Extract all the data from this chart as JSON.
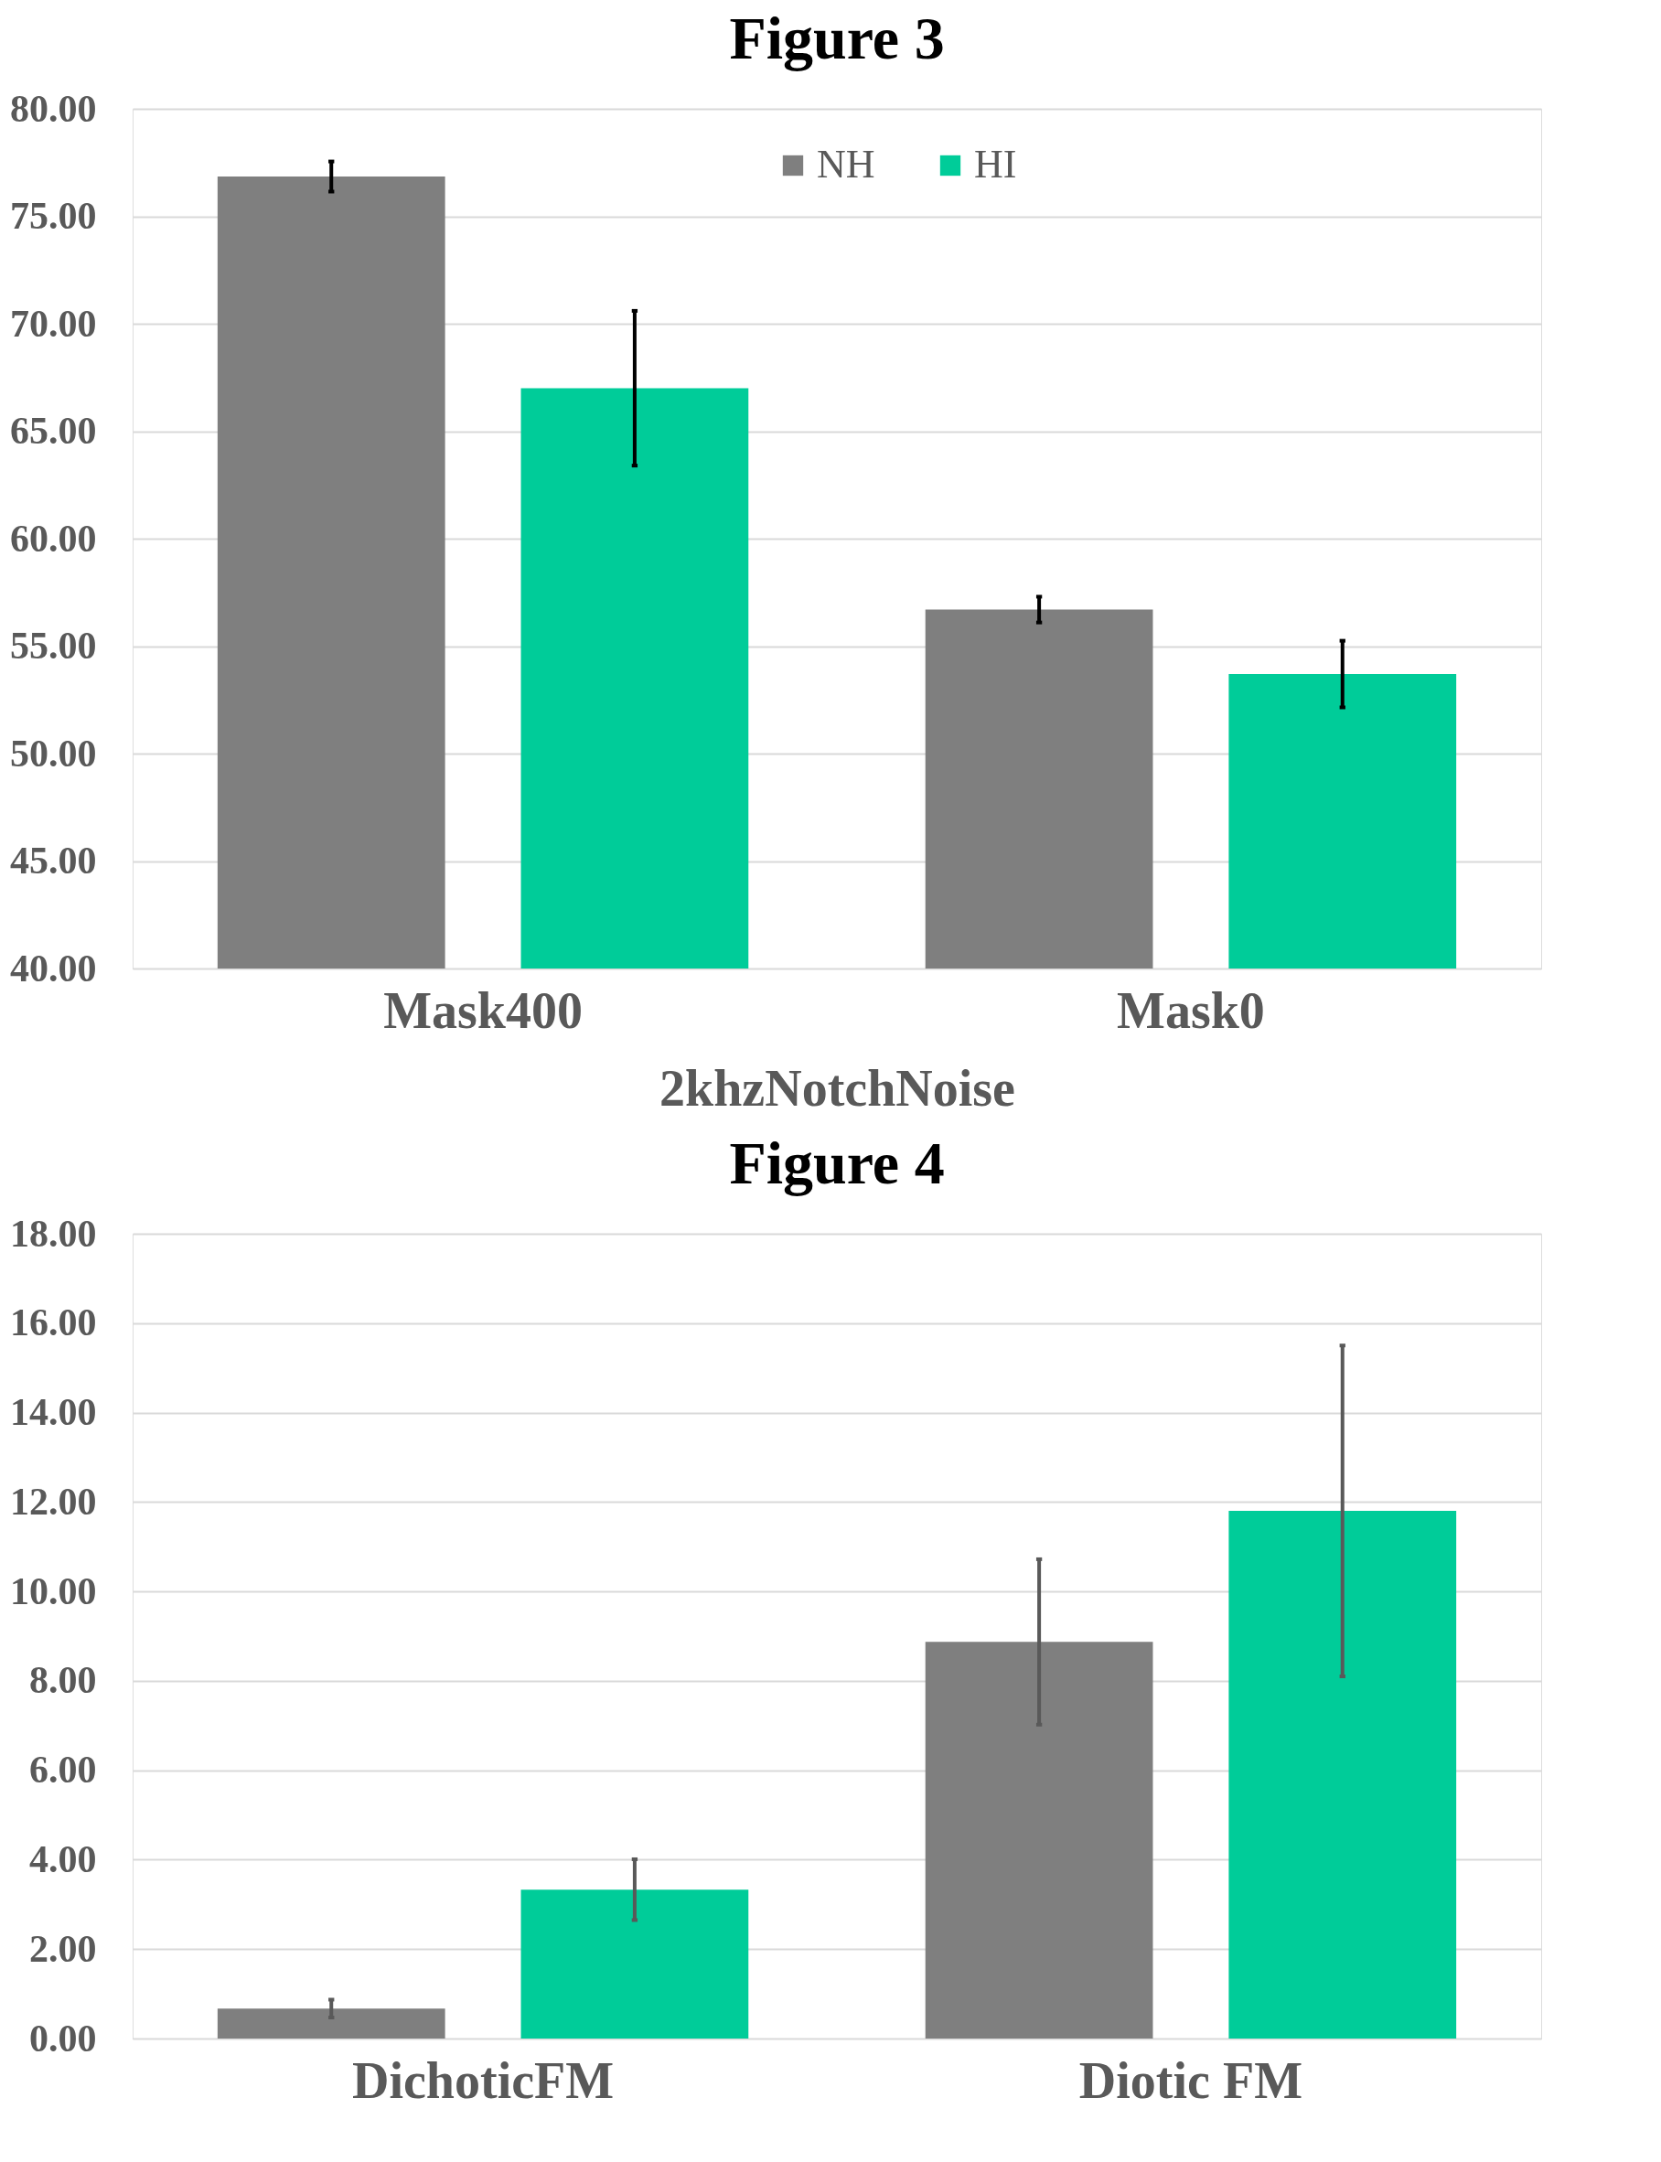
{
  "chart_data": [
    {
      "type": "bar",
      "title": "Figure 3",
      "xlabel": "2khzNotchNoise",
      "categories": [
        "Mask400",
        "Mask0"
      ],
      "ylim": [
        40,
        80
      ],
      "yticks": [
        {
          "value": 40,
          "label": "40.00"
        },
        {
          "value": 45,
          "label": "45.00"
        },
        {
          "value": 50,
          "label": "50.00"
        },
        {
          "value": 55,
          "label": "55.00"
        },
        {
          "value": 60,
          "label": "60.00"
        },
        {
          "value": 65,
          "label": "65.00"
        },
        {
          "value": 70,
          "label": "70.00"
        },
        {
          "value": 75,
          "label": "75.00"
        },
        {
          "value": 80,
          "label": "80.00"
        }
      ],
      "grid": "y",
      "legend": "top",
      "series": [
        {
          "name": "NH",
          "color": "#7f7f7f",
          "values": [
            76.85,
            56.7
          ],
          "errors": [
            0.7,
            0.6
          ]
        },
        {
          "name": "HI",
          "color": "#00cc99",
          "values": [
            67.0,
            53.7
          ],
          "errors": [
            3.6,
            1.55
          ]
        }
      ]
    },
    {
      "type": "bar",
      "title": "Figure 4",
      "categories": [
        "DichoticFM",
        "Diotic FM"
      ],
      "ylim": [
        0,
        18
      ],
      "yticks": [
        {
          "value": 0,
          "label": "0.00"
        },
        {
          "value": 2,
          "label": "2.00"
        },
        {
          "value": 4,
          "label": "4.00"
        },
        {
          "value": 6,
          "label": "6.00"
        },
        {
          "value": 8,
          "label": "8.00"
        },
        {
          "value": 10,
          "label": "10.00"
        },
        {
          "value": 12,
          "label": "12.00"
        },
        {
          "value": 14,
          "label": "14.00"
        },
        {
          "value": 16,
          "label": "16.00"
        },
        {
          "value": 18,
          "label": "18.00"
        }
      ],
      "grid": "y",
      "legend": "top",
      "series": [
        {
          "name": "NH",
          "color": "#7f7f7f",
          "values": [
            0.67,
            8.87
          ],
          "errors": [
            0.2,
            1.85
          ]
        },
        {
          "name": "HI",
          "color": "#00cc99",
          "values": [
            3.33,
            11.8
          ],
          "errors": [
            0.68,
            3.7
          ]
        }
      ]
    }
  ]
}
